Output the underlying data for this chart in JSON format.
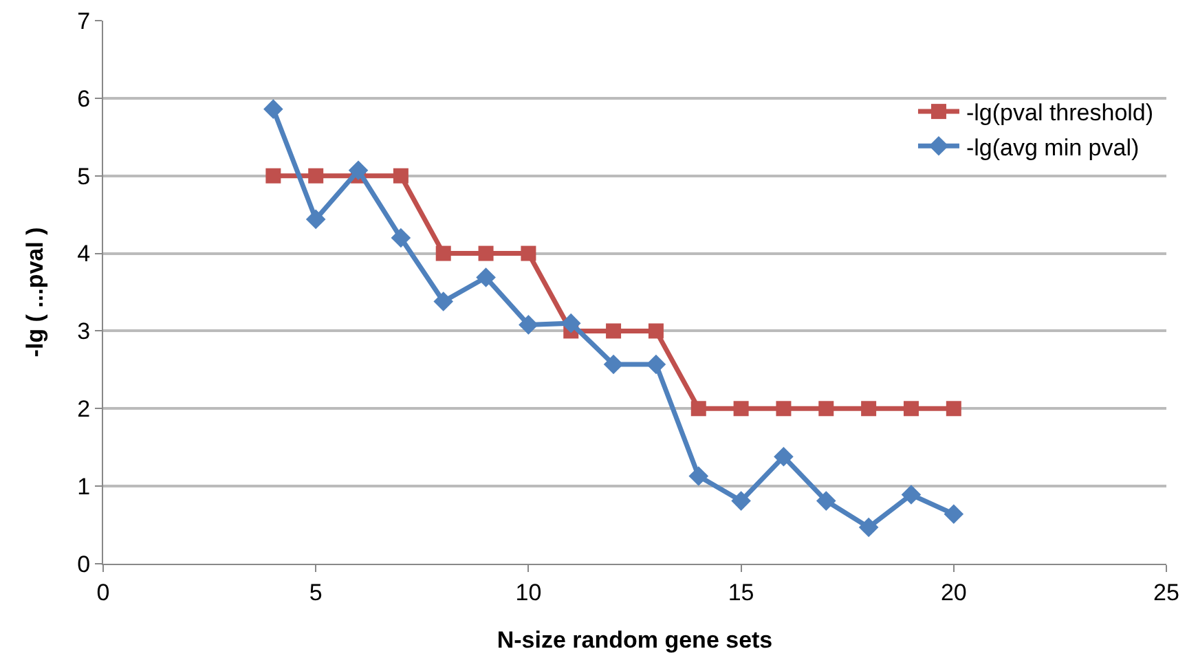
{
  "chart_data": {
    "type": "line",
    "xlabel": "N-size random gene sets",
    "ylabel": "-lg ( ...pval )",
    "x": [
      4,
      5,
      6,
      7,
      8,
      9,
      10,
      11,
      12,
      13,
      14,
      15,
      16,
      17,
      18,
      19,
      20
    ],
    "series": [
      {
        "name": "-lg(pval threshold)",
        "color": "#c0504d",
        "marker": "square",
        "values": [
          5,
          5,
          5,
          5,
          4,
          4,
          4,
          3,
          3,
          3,
          2,
          2,
          2,
          2,
          2,
          2,
          2
        ]
      },
      {
        "name": "-lg(avg min pval)",
        "color": "#4f81bd",
        "marker": "diamond",
        "values": [
          5.86,
          4.44,
          5.07,
          4.2,
          3.38,
          3.69,
          3.08,
          3.1,
          2.57,
          2.57,
          1.13,
          0.81,
          1.38,
          0.81,
          0.47,
          0.89,
          0.64
        ]
      }
    ],
    "xlim": [
      0,
      25
    ],
    "xticks": [
      0,
      5,
      10,
      15,
      20,
      25
    ],
    "ylim": [
      0,
      7
    ],
    "yticks": [
      0,
      1,
      2,
      3,
      4,
      5,
      6,
      7
    ],
    "grid": "y",
    "legend": "right",
    "line_style": "solid"
  }
}
